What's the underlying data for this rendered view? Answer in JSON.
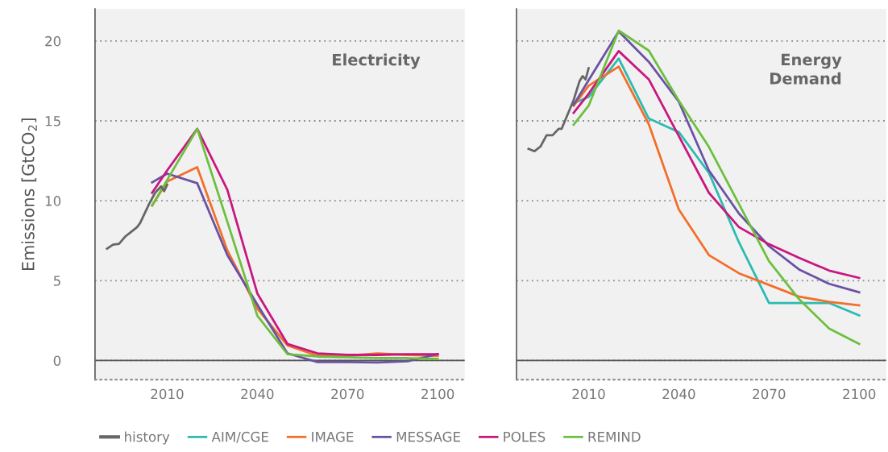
{
  "chart_data": [
    {
      "type": "line",
      "ylabel": "Emissions [GtCO$_{2}$]",
      "annotations": [
        "Electricity"
      ],
      "xlim": [
        1986,
        2109
      ],
      "xticks": [
        2010,
        2040,
        2070,
        2100
      ],
      "ylim": [
        -1.2,
        22
      ],
      "yticks": [
        0,
        5,
        10,
        15,
        20
      ],
      "grid": "y",
      "line_style": "solid",
      "legend": "bottom",
      "ref_lines": [
        {
          "axis": "y",
          "value": 0,
          "color": "#555555"
        }
      ],
      "series": [
        {
          "name": "history",
          "color": "#666666",
          "x": [
            1990,
            1992,
            1994,
            1996,
            1998,
            2000,
            2001,
            2004,
            2006,
            2008,
            2009,
            2010
          ],
          "values": [
            7.0,
            7.25,
            7.3,
            7.75,
            8.05,
            8.35,
            8.6,
            9.8,
            10.5,
            10.9,
            10.6,
            11.0
          ]
        },
        {
          "name": "IMAGE",
          "color": "#f26f2a",
          "x": [
            2005,
            2010,
            2020,
            2030,
            2040,
            2050,
            2060,
            2070,
            2080,
            2090,
            2100
          ],
          "values": [
            9.7,
            11.2,
            12.1,
            6.9,
            3.25,
            0.95,
            0.3,
            0.3,
            0.45,
            0.35,
            0.3
          ]
        },
        {
          "name": "MESSAGE",
          "color": "#6a52a3",
          "x": [
            2005,
            2010,
            2020,
            2030,
            2040,
            2050,
            2060,
            2070,
            2080,
            2090,
            2100
          ],
          "values": [
            11.15,
            11.7,
            11.1,
            6.6,
            3.5,
            0.45,
            -0.1,
            -0.1,
            -0.12,
            -0.05,
            0.4
          ]
        },
        {
          "name": "POLES",
          "color": "#c8177f",
          "x": [
            2005,
            2010,
            2020,
            2030,
            2040,
            2050,
            2060,
            2070,
            2080,
            2090,
            2100
          ],
          "values": [
            10.5,
            11.9,
            14.5,
            10.7,
            4.2,
            1.04,
            0.45,
            0.36,
            0.35,
            0.4,
            0.4
          ]
        },
        {
          "name": "REMIND",
          "color": "#6dbf3f",
          "x": [
            2005,
            2010,
            2020,
            2030,
            2040,
            2050,
            2060,
            2070,
            2080,
            2090,
            2100
          ],
          "values": [
            9.7,
            11.3,
            14.5,
            8.7,
            2.8,
            0.4,
            0.25,
            0.2,
            0.15,
            0.15,
            0.1
          ]
        }
      ]
    },
    {
      "type": "line",
      "annotations": [
        "Energy\nDemand"
      ],
      "xlim": [
        1986,
        2109
      ],
      "xticks": [
        2010,
        2040,
        2070,
        2100
      ],
      "ylim": [
        -1.2,
        22
      ],
      "yticks": [
        0,
        5,
        10,
        15,
        20
      ],
      "tick_labels": "x",
      "grid": "y",
      "line_style": "solid",
      "legend": "bottom",
      "ref_lines": [
        {
          "axis": "y",
          "value": 0,
          "color": "#555555"
        }
      ],
      "series": [
        {
          "name": "history",
          "color": "#666666",
          "x": [
            1990,
            1992,
            1994,
            1996,
            1998,
            2000,
            2001,
            2005,
            2007,
            2008,
            2009,
            2010
          ],
          "values": [
            13.25,
            13.1,
            13.4,
            14.1,
            14.1,
            14.5,
            14.5,
            16.3,
            17.5,
            17.8,
            17.6,
            18.3
          ]
        },
        {
          "name": "AIM/CGE",
          "color": "#2bbbb0",
          "x": [
            2005,
            2010,
            2020,
            2030,
            2040,
            2050,
            2060,
            2070,
            2080,
            2090,
            2100
          ],
          "values": [
            16.1,
            16.5,
            18.9,
            15.15,
            14.3,
            11.75,
            7.4,
            3.6,
            3.6,
            3.6,
            2.82
          ]
        },
        {
          "name": "IMAGE",
          "color": "#f26f2a",
          "x": [
            2005,
            2010,
            2020,
            2030,
            2040,
            2050,
            2060,
            2070,
            2080,
            2090,
            2100
          ],
          "values": [
            15.95,
            17.2,
            18.4,
            14.8,
            9.45,
            6.6,
            5.46,
            4.73,
            4.0,
            3.67,
            3.45
          ]
        },
        {
          "name": "MESSAGE",
          "color": "#6a52a3",
          "x": [
            2005,
            2010,
            2020,
            2030,
            2040,
            2050,
            2060,
            2070,
            2080,
            2090,
            2100
          ],
          "values": [
            16.0,
            17.55,
            20.6,
            18.7,
            16.2,
            11.9,
            9.2,
            7.16,
            5.7,
            4.8,
            4.27
          ]
        },
        {
          "name": "POLES",
          "color": "#c8177f",
          "x": [
            2005,
            2010,
            2020,
            2030,
            2040,
            2050,
            2060,
            2070,
            2080,
            2090,
            2100
          ],
          "values": [
            15.5,
            16.7,
            19.37,
            17.6,
            14.05,
            10.5,
            8.35,
            7.28,
            6.43,
            5.63,
            5.17
          ]
        },
        {
          "name": "REMIND",
          "color": "#6dbf3f",
          "x": [
            2005,
            2010,
            2020,
            2030,
            2040,
            2050,
            2060,
            2070,
            2080,
            2090,
            2100
          ],
          "values": [
            14.76,
            15.95,
            20.65,
            19.4,
            16.26,
            13.37,
            9.8,
            6.22,
            3.84,
            2.0,
            1.04
          ]
        }
      ]
    }
  ]
}
